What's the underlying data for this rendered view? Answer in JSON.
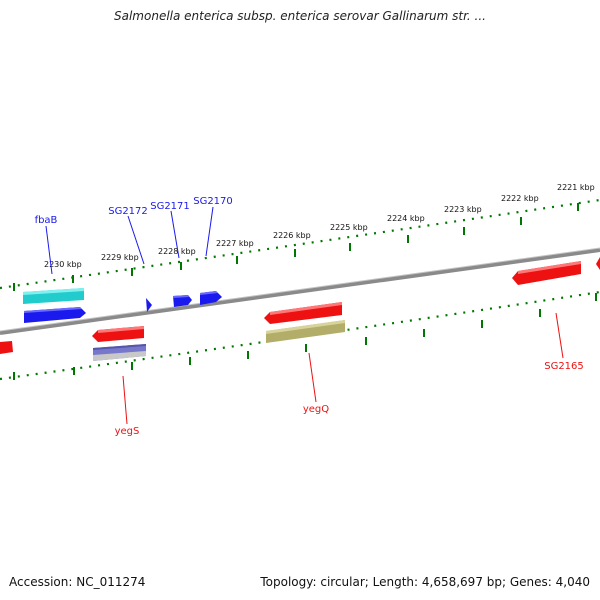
{
  "title": "Salmonella enterica subsp. enterica serovar Gallinarum str. ...",
  "footer": {
    "accession": "Accession: NC_011274",
    "topology": "Topology: circular; Length: 4,658,697 bp; Genes: 4,040"
  },
  "colors": {
    "forward_gene": "#1a1aee",
    "reverse_gene": "#ee1111",
    "cyan_feature": "#22cccc",
    "purple_feature": "#7777cc",
    "olive_feature": "#b3ad6a",
    "backbone": "#888888",
    "ticks": "#007700"
  },
  "scale": {
    "tick_labels": [
      "2230 kbp",
      "2229 kbp",
      "2228 kbp",
      "2227 kbp",
      "2226 kbp",
      "2225 kbp",
      "2224 kbp",
      "2223 kbp",
      "2222 kbp",
      "2221 kbp"
    ]
  },
  "gene_labels": {
    "forward": [
      "fbaB",
      "SG2172",
      "SG2171",
      "SG2170"
    ],
    "reverse": [
      "yegS",
      "yegQ",
      "SG2165"
    ]
  }
}
